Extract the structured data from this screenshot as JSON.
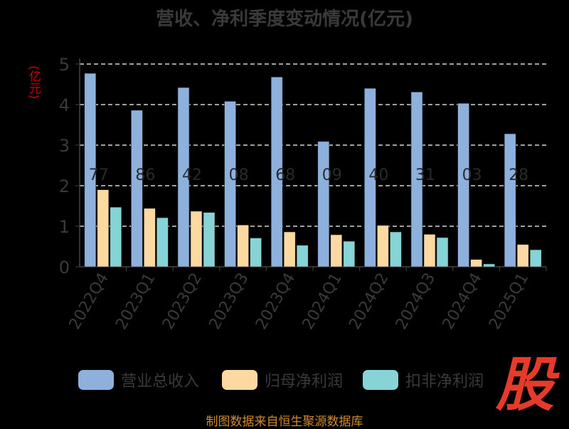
{
  "title": "营收、净利季度变动情况(亿元)",
  "source": "制图数据来自恒生聚源数据库",
  "logo": "股",
  "chart_data": {
    "type": "bar",
    "title": "营收、净利季度变动情况(亿元)",
    "ylabel": "(亿元)",
    "xlabel": "",
    "ylim": [
      0,
      5
    ],
    "yticks": [
      0,
      1,
      2,
      3,
      4,
      5
    ],
    "grid": true,
    "legend": "bottom",
    "categories": [
      "2022Q4",
      "2023Q1",
      "2023Q2",
      "2023Q3",
      "2023Q4",
      "2024Q1",
      "2024Q2",
      "2024Q3",
      "2024Q4",
      "2025Q1"
    ],
    "series": [
      {
        "name": "营业总收入",
        "color": "#8eb0dc",
        "values": [
          4.77,
          3.86,
          4.42,
          4.08,
          4.68,
          3.09,
          4.4,
          4.31,
          4.03,
          3.28
        ]
      },
      {
        "name": "归母净利润",
        "color": "#fcd9a0",
        "values": [
          1.9,
          1.44,
          1.37,
          1.03,
          0.86,
          0.79,
          1.02,
          0.8,
          0.18,
          0.55
        ]
      },
      {
        "name": "扣非净利润",
        "color": "#86d4d6",
        "values": [
          1.47,
          1.21,
          1.34,
          0.71,
          0.53,
          0.63,
          0.86,
          0.72,
          0.07,
          0.42
        ]
      }
    ],
    "bar_labels": [
      "77",
      "86",
      "42",
      "08",
      "68",
      "09",
      "40",
      "31",
      "03",
      "28"
    ]
  }
}
